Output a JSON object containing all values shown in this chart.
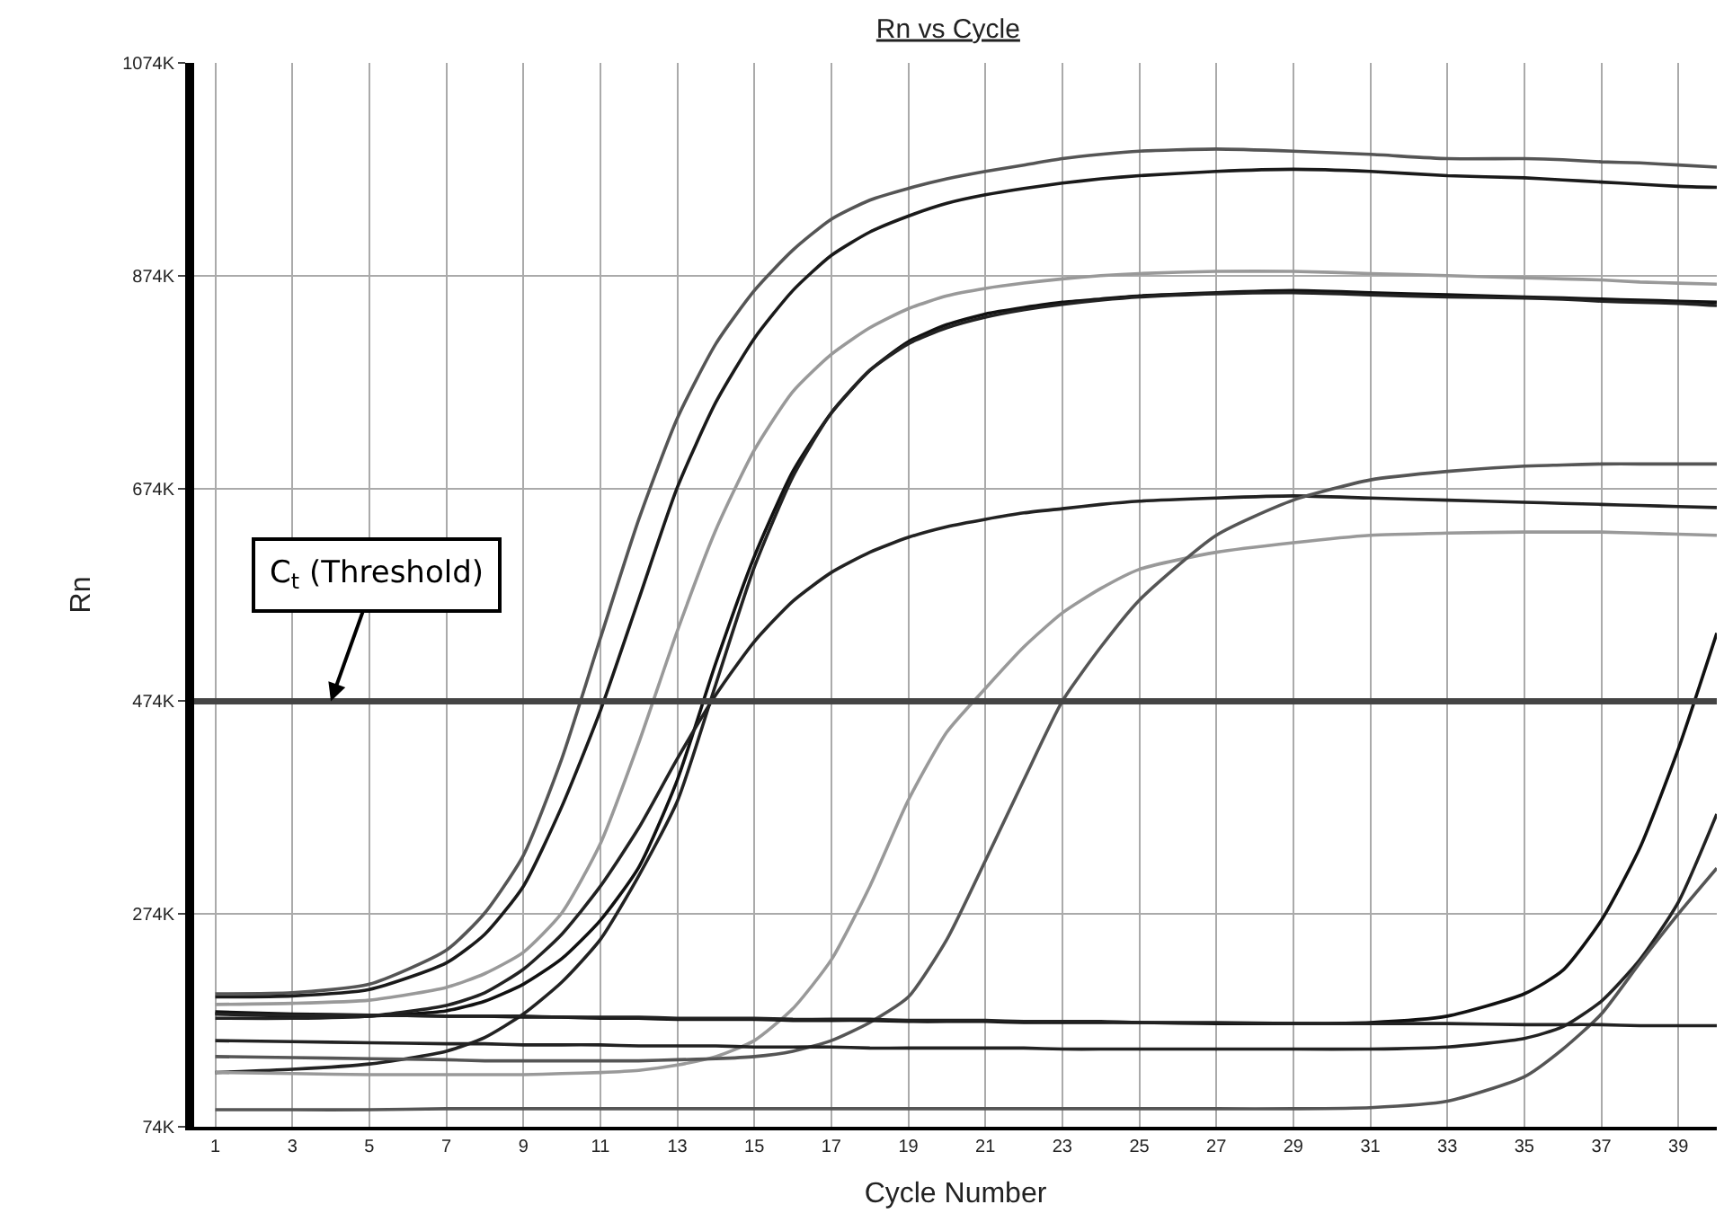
{
  "chart_data": {
    "type": "line",
    "title": "Rn vs Cycle",
    "xlabel": "Cycle Number",
    "ylabel": "Rn",
    "x": [
      1,
      3,
      5,
      7,
      8,
      9,
      10,
      11,
      12,
      13,
      14,
      15,
      16,
      17,
      18,
      19,
      20,
      21,
      22,
      23,
      24,
      25,
      27,
      29,
      31,
      33,
      35,
      36,
      37,
      38,
      39,
      40
    ],
    "series": [
      {
        "color": "#555555",
        "values": [
          199,
          200,
          208,
          240,
          275,
          329,
          420,
          533,
          645,
          740,
          810,
          860,
          898,
          927,
          945,
          956,
          965,
          972,
          978,
          984,
          988,
          991,
          993,
          991,
          988,
          984,
          984,
          983,
          981,
          980,
          978,
          976
        ]
      },
      {
        "color": "#1a1a1a",
        "values": [
          196,
          197,
          203,
          228,
          255,
          300,
          375,
          465,
          570,
          675,
          755,
          815,
          860,
          893,
          915,
          930,
          942,
          950,
          956,
          961,
          965,
          968,
          972,
          974,
          972,
          968,
          966,
          964,
          962,
          960,
          958,
          957
        ]
      },
      {
        "color": "#999999",
        "values": [
          189,
          190,
          193,
          205,
          218,
          238,
          275,
          340,
          435,
          540,
          635,
          710,
          765,
          800,
          825,
          843,
          855,
          862,
          867,
          871,
          874,
          876,
          878,
          878,
          876,
          874,
          872,
          871,
          870,
          868,
          867,
          866
        ]
      },
      {
        "color": "#111111",
        "values": [
          180,
          178,
          178,
          183,
          192,
          208,
          232,
          268,
          318,
          400,
          510,
          610,
          690,
          745,
          785,
          812,
          828,
          838,
          844,
          849,
          852,
          855,
          858,
          860,
          858,
          856,
          854,
          853,
          852,
          851,
          850,
          849
        ]
      },
      {
        "color": "#222222",
        "values": [
          125,
          128,
          133,
          145,
          158,
          180,
          210,
          250,
          310,
          380,
          490,
          600,
          685,
          745,
          785,
          810,
          825,
          835,
          842,
          847,
          851,
          854,
          857,
          858,
          856,
          854,
          853,
          852,
          850,
          849,
          848,
          846
        ]
      },
      {
        "color": "#222222",
        "values": [
          176,
          176,
          178,
          188,
          200,
          222,
          255,
          300,
          355,
          420,
          480,
          530,
          568,
          595,
          614,
          628,
          638,
          645,
          651,
          655,
          659,
          662,
          665,
          667,
          665,
          663,
          661,
          660,
          659,
          658,
          657,
          656
        ]
      },
      {
        "color": "#999999",
        "values": [
          125,
          124,
          123,
          123,
          123,
          123,
          124,
          125,
          127,
          132,
          140,
          155,
          185,
          231,
          300,
          381,
          445,
          486,
          525,
          557,
          580,
          598,
          614,
          623,
          630,
          632,
          633,
          633,
          633,
          632,
          631,
          630
        ]
      },
      {
        "color": "#555555",
        "values": [
          140,
          139,
          138,
          137,
          136,
          136,
          136,
          136,
          136,
          137,
          138,
          140,
          145,
          155,
          172,
          196,
          250,
          324,
          400,
          474,
          525,
          569,
          630,
          663,
          682,
          690,
          695,
          696,
          697,
          697,
          697,
          697
        ]
      },
      {
        "color": "#111111",
        "values": [
          182,
          180,
          179,
          178,
          178,
          177,
          177,
          176,
          176,
          175,
          175,
          175,
          174,
          174,
          174,
          173,
          173,
          173,
          172,
          172,
          172,
          172,
          171,
          171,
          172,
          178,
          199,
          221,
          268,
          336,
          429,
          538
        ]
      },
      {
        "color": "#222222",
        "values": [
          155,
          154,
          153,
          152,
          152,
          151,
          151,
          151,
          150,
          150,
          150,
          149,
          149,
          149,
          148,
          148,
          148,
          148,
          148,
          147,
          147,
          147,
          147,
          147,
          147,
          149,
          157,
          168,
          192,
          231,
          285,
          368
        ]
      },
      {
        "color": "#555555",
        "values": [
          90,
          90,
          90,
          91,
          91,
          91,
          91,
          91,
          91,
          91,
          91,
          91,
          91,
          91,
          91,
          91,
          91,
          91,
          91,
          91,
          91,
          91,
          91,
          91,
          92,
          98,
          121,
          147,
          180,
          228,
          274,
          317
        ]
      },
      {
        "color": "#222222",
        "values": [
          180,
          179,
          179,
          178,
          178,
          178,
          177,
          177,
          177,
          176,
          176,
          176,
          175,
          175,
          175,
          174,
          174,
          174,
          173,
          173,
          173,
          172,
          172,
          171,
          171,
          171,
          170,
          170,
          170,
          169,
          169,
          169
        ]
      }
    ],
    "xlim": [
      0.45,
      40
    ],
    "xticks": [
      1,
      3,
      5,
      7,
      9,
      11,
      13,
      15,
      17,
      19,
      21,
      23,
      25,
      27,
      29,
      31,
      33,
      35,
      37,
      39
    ],
    "ylim": [
      74,
      1074
    ],
    "yticks": [
      {
        "value": 74,
        "label": "74K"
      },
      {
        "value": 274,
        "label": "274K"
      },
      {
        "value": 474,
        "label": "474K"
      },
      {
        "value": 674,
        "label": "674K"
      },
      {
        "value": 874,
        "label": "874K"
      },
      {
        "value": 1074,
        "label": "1074K"
      }
    ],
    "ref_lines": [
      {
        "axis": "y",
        "value": 474,
        "color": "#444444"
      }
    ],
    "annotations": [
      {
        "text": "C$_{t}$ (Threshold)",
        "x": 4,
        "y": 474
      }
    ],
    "grid": true,
    "marker": "none",
    "line_style": "solid"
  }
}
